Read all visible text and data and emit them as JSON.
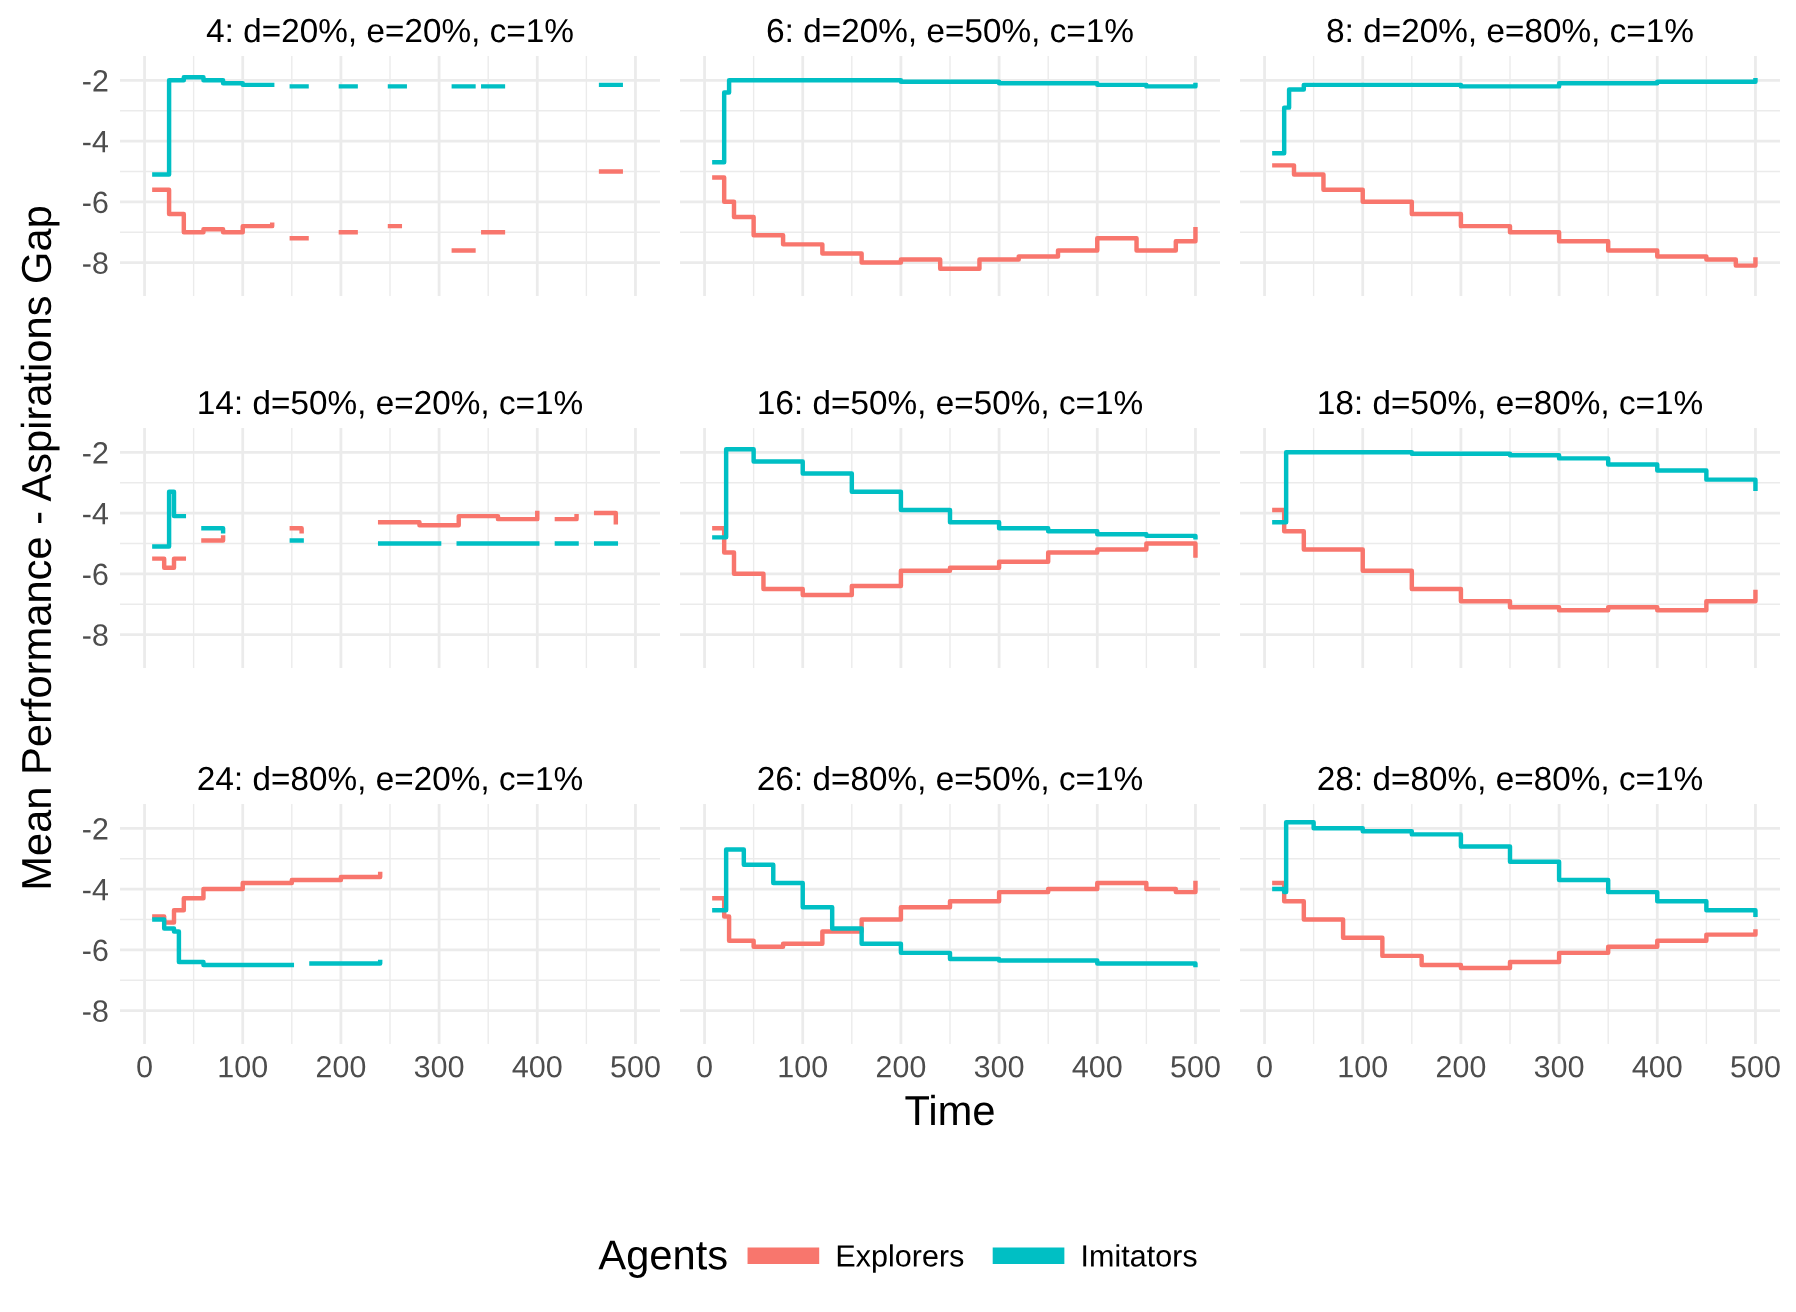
{
  "chart_data": [
    {
      "type": "step",
      "title": "4: d=20%, e=20%, c=1%",
      "xlim": [
        -25,
        525
      ],
      "xticks": [
        0,
        100,
        200,
        300,
        400,
        500
      ],
      "ylim": [
        -9.1,
        -1.2
      ],
      "yticks": [
        -8,
        -6,
        -4,
        -2
      ],
      "grid": true,
      "tick_labels": "y",
      "legend": false,
      "series": [
        {
          "color": "#f8766d",
          "x": [
            10,
            25,
            40,
            60,
            80,
            100,
            130,
            null,
            150,
            165,
            null,
            200,
            215,
            null,
            250,
            260,
            null,
            315,
            335,
            null,
            345,
            365,
            null,
            465,
            485
          ],
          "values": [
            -5.6,
            -6.4,
            -7.0,
            -6.9,
            -7.0,
            -6.8,
            -6.75,
            null,
            -7.2,
            -7.2,
            null,
            -7.0,
            -7.0,
            null,
            -6.8,
            -6.8,
            null,
            -7.6,
            -7.6,
            null,
            -7.0,
            -7.0,
            null,
            -5.0,
            -5.0
          ]
        },
        {
          "color": "#00bfc4",
          "x": [
            10,
            25,
            40,
            60,
            80,
            100,
            130,
            null,
            150,
            165,
            null,
            200,
            215,
            null,
            250,
            265,
            null,
            315,
            335,
            null,
            345,
            365,
            null,
            465,
            485
          ],
          "values": [
            -5.1,
            -2.0,
            -1.9,
            -2.0,
            -2.1,
            -2.15,
            -2.15,
            null,
            -2.2,
            -2.2,
            null,
            -2.2,
            -2.2,
            null,
            -2.2,
            -2.2,
            null,
            -2.2,
            -2.2,
            null,
            -2.2,
            -2.2,
            null,
            -2.15,
            -2.15
          ]
        }
      ]
    },
    {
      "type": "step",
      "title": "6: d=20%, e=50%, c=1%",
      "xlim": [
        -25,
        525
      ],
      "xticks": [
        0,
        100,
        200,
        300,
        400,
        500
      ],
      "ylim": [
        -9.1,
        -1.2
      ],
      "yticks": [
        -8,
        -6,
        -4,
        -2
      ],
      "grid": true,
      "tick_labels": false,
      "legend": false,
      "series": [
        {
          "color": "#f8766d",
          "x": [
            10,
            20,
            30,
            50,
            80,
            120,
            160,
            200,
            240,
            280,
            320,
            360,
            400,
            440,
            480,
            500
          ],
          "values": [
            -5.2,
            -6.0,
            -6.5,
            -7.1,
            -7.4,
            -7.7,
            -8.0,
            -7.9,
            -8.2,
            -7.9,
            -7.8,
            -7.6,
            -7.2,
            -7.6,
            -7.3,
            -6.9
          ]
        },
        {
          "color": "#00bfc4",
          "x": [
            10,
            20,
            25,
            100,
            200,
            300,
            400,
            450,
            500
          ],
          "values": [
            -4.7,
            -2.4,
            -2.0,
            -2.0,
            -2.05,
            -2.1,
            -2.15,
            -2.2,
            -2.15
          ]
        }
      ]
    },
    {
      "type": "step",
      "title": "8: d=20%, e=80%, c=1%",
      "xlim": [
        -25,
        525
      ],
      "xticks": [
        0,
        100,
        200,
        300,
        400,
        500
      ],
      "ylim": [
        -9.1,
        -1.2
      ],
      "yticks": [
        -8,
        -6,
        -4,
        -2
      ],
      "grid": true,
      "tick_labels": false,
      "legend": false,
      "series": [
        {
          "color": "#f8766d",
          "x": [
            10,
            30,
            60,
            100,
            150,
            200,
            250,
            300,
            350,
            400,
            450,
            480,
            500
          ],
          "values": [
            -4.8,
            -5.1,
            -5.6,
            -6.0,
            -6.4,
            -6.8,
            -7.0,
            -7.3,
            -7.6,
            -7.8,
            -7.9,
            -8.1,
            -7.9
          ]
        },
        {
          "color": "#00bfc4",
          "x": [
            10,
            20,
            25,
            40,
            100,
            200,
            300,
            400,
            500
          ],
          "values": [
            -4.4,
            -2.9,
            -2.3,
            -2.15,
            -2.15,
            -2.2,
            -2.1,
            -2.05,
            -2.0
          ]
        }
      ]
    },
    {
      "type": "step",
      "title": "14: d=50%, e=20%, c=1%",
      "xlim": [
        -25,
        525
      ],
      "xticks": [
        0,
        100,
        200,
        300,
        400,
        500
      ],
      "ylim": [
        -9.1,
        -1.2
      ],
      "yticks": [
        -8,
        -6,
        -4,
        -2
      ],
      "grid": true,
      "tick_labels": "y",
      "legend": false,
      "ylabel": "Mean Performance - Aspirations Gap",
      "series": [
        {
          "color": "#f8766d",
          "x": [
            10,
            20,
            30,
            40,
            null,
            60,
            80,
            null,
            150,
            160,
            null,
            240,
            280,
            320,
            360,
            400,
            null,
            420,
            440,
            null,
            460,
            480
          ],
          "values": [
            -5.5,
            -5.8,
            -5.5,
            -5.5,
            null,
            -4.9,
            -4.8,
            null,
            -4.5,
            -4.6,
            null,
            -4.3,
            -4.4,
            -4.1,
            -4.2,
            -4.0,
            null,
            -4.2,
            -4.1,
            null,
            -4.0,
            -4.3
          ]
        },
        {
          "color": "#00bfc4",
          "x": [
            10,
            20,
            25,
            30,
            40,
            null,
            60,
            80,
            null,
            150,
            160,
            null,
            240,
            300,
            null,
            320,
            400,
            null,
            420,
            440,
            null,
            460,
            480
          ],
          "values": [
            -5.1,
            -5.1,
            -3.3,
            -4.1,
            -4.1,
            null,
            -4.5,
            -4.6,
            null,
            -4.9,
            -4.9,
            null,
            -5.0,
            -5.0,
            null,
            -5.0,
            -5.0,
            null,
            -5.0,
            -5.0,
            null,
            -5.0,
            -5.0
          ]
        }
      ]
    },
    {
      "type": "step",
      "title": "16: d=50%, e=50%, c=1%",
      "xlim": [
        -25,
        525
      ],
      "xticks": [
        0,
        100,
        200,
        300,
        400,
        500
      ],
      "ylim": [
        -9.1,
        -1.2
      ],
      "yticks": [
        -8,
        -6,
        -4,
        -2
      ],
      "grid": true,
      "tick_labels": false,
      "legend": false,
      "series": [
        {
          "color": "#f8766d",
          "x": [
            10,
            20,
            30,
            60,
            100,
            150,
            200,
            250,
            300,
            350,
            400,
            450,
            480,
            500
          ],
          "values": [
            -4.5,
            -5.3,
            -6.0,
            -6.5,
            -6.7,
            -6.4,
            -5.9,
            -5.8,
            -5.6,
            -5.3,
            -5.2,
            -5.0,
            -5.0,
            -5.4
          ]
        },
        {
          "color": "#00bfc4",
          "x": [
            10,
            20,
            22,
            50,
            100,
            150,
            200,
            250,
            300,
            350,
            400,
            450,
            500
          ],
          "values": [
            -4.8,
            -4.8,
            -1.9,
            -2.3,
            -2.7,
            -3.3,
            -3.9,
            -4.3,
            -4.5,
            -4.6,
            -4.7,
            -4.75,
            -4.8
          ]
        }
      ]
    },
    {
      "type": "step",
      "title": "18: d=50%, e=80%, c=1%",
      "xlim": [
        -25,
        525
      ],
      "xticks": [
        0,
        100,
        200,
        300,
        400,
        500
      ],
      "ylim": [
        -9.1,
        -1.2
      ],
      "yticks": [
        -8,
        -6,
        -4,
        -2
      ],
      "grid": true,
      "tick_labels": false,
      "legend": false,
      "series": [
        {
          "color": "#f8766d",
          "x": [
            10,
            20,
            40,
            100,
            150,
            200,
            250,
            300,
            350,
            400,
            450,
            500
          ],
          "values": [
            -3.9,
            -4.6,
            -5.2,
            -5.9,
            -6.5,
            -6.9,
            -7.1,
            -7.2,
            -7.1,
            -7.2,
            -6.9,
            -6.6
          ]
        },
        {
          "color": "#00bfc4",
          "x": [
            10,
            20,
            22,
            50,
            150,
            250,
            300,
            350,
            400,
            450,
            500
          ],
          "values": [
            -4.3,
            -4.3,
            -2.0,
            -2.0,
            -2.05,
            -2.1,
            -2.2,
            -2.4,
            -2.6,
            -2.9,
            -3.2
          ]
        }
      ]
    },
    {
      "type": "step",
      "title": "24: d=80%, e=20%, c=1%",
      "xlim": [
        -25,
        525
      ],
      "xticks": [
        0,
        100,
        200,
        300,
        400,
        500
      ],
      "ylim": [
        -9.1,
        -1.2
      ],
      "yticks": [
        -8,
        -6,
        -4,
        -2
      ],
      "grid": true,
      "legend": false,
      "series": [
        {
          "color": "#f8766d",
          "x": [
            10,
            20,
            30,
            40,
            60,
            100,
            150,
            200,
            240
          ],
          "values": [
            -4.9,
            -5.1,
            -4.7,
            -4.3,
            -4.0,
            -3.8,
            -3.7,
            -3.6,
            -3.5
          ]
        },
        {
          "color": "#00bfc4",
          "x": [
            10,
            20,
            30,
            35,
            60,
            100,
            150,
            null,
            170,
            220,
            240
          ],
          "values": [
            -5.0,
            -5.3,
            -5.4,
            -6.4,
            -6.5,
            -6.5,
            -6.5,
            null,
            -6.45,
            -6.45,
            -6.4
          ]
        }
      ]
    },
    {
      "type": "step",
      "title": "26: d=80%, e=50%, c=1%",
      "xlim": [
        -25,
        525
      ],
      "xticks": [
        0,
        100,
        200,
        300,
        400,
        500
      ],
      "ylim": [
        -9.1,
        -1.2
      ],
      "yticks": [
        -8,
        -6,
        -4,
        -2
      ],
      "grid": true,
      "tick_labels": "x",
      "xlabel": "Time",
      "legend": "bottom",
      "legend_title": "Agents",
      "series": [
        {
          "name": "Explorers",
          "color": "#f8766d",
          "x": [
            10,
            20,
            25,
            50,
            80,
            120,
            160,
            200,
            250,
            300,
            350,
            400,
            450,
            480,
            500
          ],
          "values": [
            -4.3,
            -4.9,
            -5.7,
            -5.9,
            -5.8,
            -5.4,
            -5.0,
            -4.6,
            -4.4,
            -4.1,
            -4.0,
            -3.8,
            -4.0,
            -4.1,
            -3.8
          ]
        },
        {
          "name": "Imitators",
          "color": "#00bfc4",
          "x": [
            10,
            20,
            22,
            40,
            70,
            100,
            130,
            160,
            200,
            250,
            300,
            400,
            500
          ],
          "values": [
            -4.7,
            -4.7,
            -2.7,
            -3.2,
            -3.8,
            -4.6,
            -5.3,
            -5.8,
            -6.1,
            -6.3,
            -6.35,
            -6.45,
            -6.5
          ]
        }
      ]
    },
    {
      "type": "step",
      "title": "28: d=80%, e=80%, c=1%",
      "xlim": [
        -25,
        525
      ],
      "xticks": [
        0,
        100,
        200,
        300,
        400,
        500
      ],
      "ylim": [
        -9.1,
        -1.2
      ],
      "yticks": [
        -8,
        -6,
        -4,
        -2
      ],
      "grid": true,
      "tick_labels": "x",
      "legend": false,
      "series": [
        {
          "color": "#f8766d",
          "x": [
            10,
            20,
            40,
            80,
            120,
            160,
            200,
            250,
            300,
            350,
            400,
            450,
            500
          ],
          "values": [
            -3.8,
            -4.4,
            -5.0,
            -5.6,
            -6.2,
            -6.5,
            -6.6,
            -6.4,
            -6.1,
            -5.9,
            -5.7,
            -5.5,
            -5.4
          ]
        },
        {
          "color": "#00bfc4",
          "x": [
            10,
            20,
            22,
            50,
            100,
            150,
            200,
            250,
            300,
            350,
            400,
            450,
            500
          ],
          "values": [
            -4.0,
            -4.1,
            -1.8,
            -2.0,
            -2.1,
            -2.2,
            -2.6,
            -3.1,
            -3.7,
            -4.1,
            -4.4,
            -4.7,
            -4.85
          ]
        }
      ]
    }
  ]
}
